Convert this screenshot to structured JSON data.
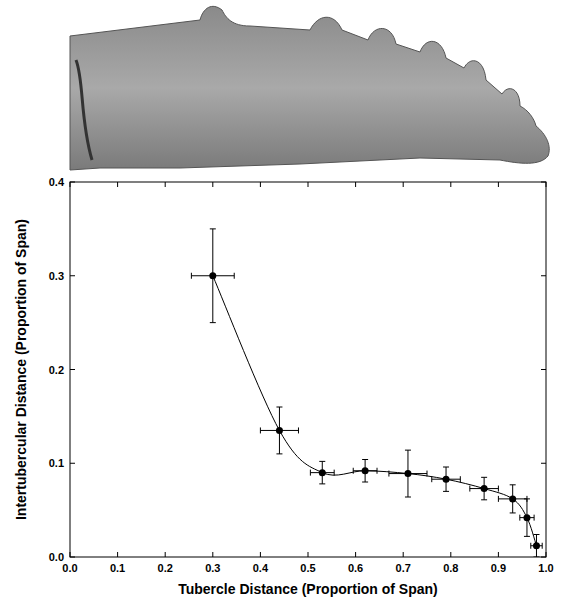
{
  "chart_data": {
    "type": "scatter",
    "x_label": "Tubercle Distance (Proportion of Span)",
    "y_label": "Intertubercular Distance (Proportion of Span)",
    "x": [
      0.3,
      0.44,
      0.53,
      0.62,
      0.71,
      0.79,
      0.87,
      0.93,
      0.96,
      0.98
    ],
    "values": [
      0.3,
      0.135,
      0.09,
      0.092,
      0.089,
      0.083,
      0.073,
      0.062,
      0.042,
      0.012
    ],
    "x_error": [
      0.045,
      0.04,
      0.025,
      0.025,
      0.04,
      0.03,
      0.03,
      0.03,
      0.015,
      0.012
    ],
    "y_error": [
      0.05,
      0.025,
      0.012,
      0.012,
      0.025,
      0.013,
      0.012,
      0.015,
      0.02,
      0.012
    ],
    "color": "#000000",
    "marker": "circle",
    "line_style": "solid",
    "xlim": [
      0,
      1
    ],
    "ylim": [
      0,
      0.4
    ],
    "xticks": [
      {
        "value": 0,
        "label": "0.0"
      },
      0.1,
      0.2,
      0.3,
      0.4,
      0.5,
      0.6,
      0.7,
      0.8,
      0.9,
      {
        "value": 1,
        "label": "1.0"
      }
    ],
    "yticks": [
      {
        "value": 0,
        "label": "0.0"
      },
      0.1,
      0.2,
      0.3,
      0.4
    ],
    "grid": false
  }
}
